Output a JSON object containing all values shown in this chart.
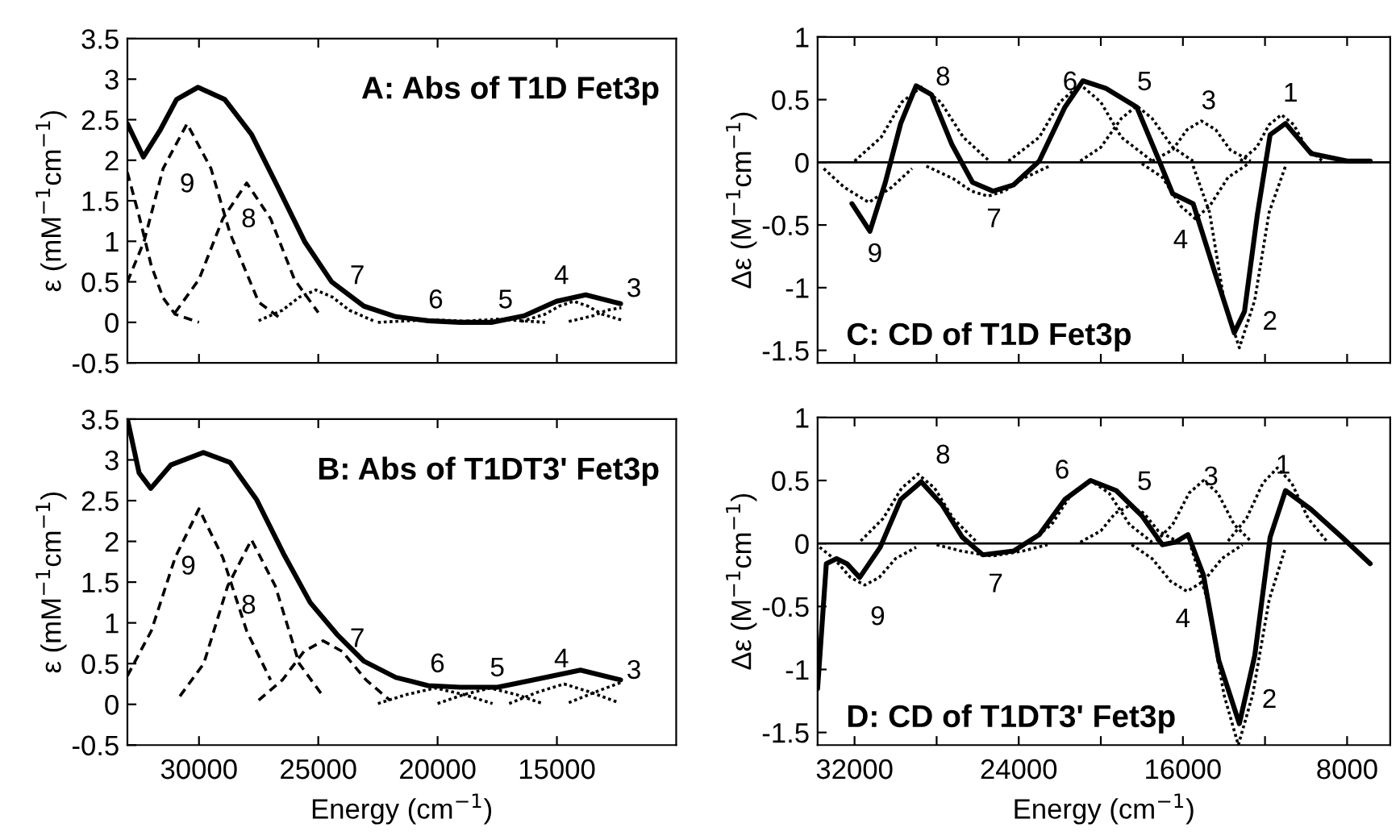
{
  "chart_data": [
    {
      "type": "line",
      "title": "A: Abs of T1D Fet3p",
      "ylabel": "ε (mM$^{−1}$cm$^{−1}$)",
      "xlim": [
        33000,
        10000
      ],
      "ylim": [
        -0.5,
        3.5
      ],
      "xticks": [
        {
          "value": 30000,
          "label": null
        },
        {
          "value": 25000,
          "label": null
        },
        {
          "value": 20000,
          "label": null
        },
        {
          "value": 15000,
          "label": null
        }
      ],
      "yticks": [
        3.5,
        3,
        2.5,
        2,
        1.5,
        1,
        0.5,
        0,
        -0.5
      ],
      "tick_labels": "y",
      "series": [
        {
          "color": "#000000",
          "line_style": "solid",
          "x": [
            33000,
            32330,
            31610,
            30940,
            30040,
            28920,
            27800,
            26680,
            25560,
            24440,
            23090,
            21750,
            20400,
            19060,
            17710,
            16370,
            15020,
            13790,
            12330
          ],
          "values": [
            2.45,
            2.04,
            2.38,
            2.75,
            2.9,
            2.75,
            2.32,
            1.66,
            0.99,
            0.5,
            0.2,
            0.07,
            0.02,
            0,
            0,
            0.08,
            0.26,
            0.34,
            0.23
          ]
        },
        {
          "color": "#000000",
          "line_style": "dashed",
          "x": [
            33000,
            32500,
            32000,
            31500,
            31000,
            30000
          ],
          "values": [
            1.85,
            1.3,
            0.7,
            0.3,
            0.1,
            0
          ]
        },
        {
          "color": "#000000",
          "line_style": "dashed",
          "x": [
            33000,
            32300,
            31500,
            30500,
            29500,
            28700,
            27500,
            26500
          ],
          "values": [
            0.5,
            1.0,
            1.9,
            2.45,
            1.9,
            1.1,
            0.25,
            0.03
          ]
        },
        {
          "color": "#000000",
          "line_style": "dashed",
          "x": [
            31000,
            30000,
            29000,
            28000,
            27000,
            26000,
            25000
          ],
          "values": [
            0.12,
            0.53,
            1.28,
            1.72,
            1.28,
            0.53,
            0.12
          ]
        },
        {
          "color": "#000000",
          "line_style": "dotted",
          "x": [
            27500,
            26500,
            25800,
            25100,
            24400,
            23700,
            22700
          ],
          "values": [
            0.02,
            0.15,
            0.31,
            0.4,
            0.31,
            0.15,
            0.02
          ]
        },
        {
          "color": "#000000",
          "line_style": "dotted",
          "x": [
            22500,
            21200,
            20200,
            19200,
            17900
          ],
          "values": [
            0,
            0.02,
            0.03,
            0.02,
            0
          ]
        },
        {
          "color": "#000000",
          "line_style": "dotted",
          "x": [
            19500,
            18500,
            17500,
            16500,
            15500
          ],
          "values": [
            0,
            0.02,
            0.04,
            0.02,
            0
          ]
        },
        {
          "color": "#000000",
          "line_style": "dotted",
          "x": [
            16500,
            15500,
            14900,
            14300,
            13700,
            13100,
            12300
          ],
          "values": [
            0.01,
            0.1,
            0.2,
            0.26,
            0.2,
            0.1,
            0.03
          ]
        },
        {
          "color": "#000000",
          "line_style": "dotted",
          "x": [
            14500,
            13500,
            12900,
            12300
          ],
          "values": [
            0.01,
            0.08,
            0.15,
            0.18
          ]
        }
      ],
      "annotations": [
        "9",
        "8",
        "7",
        "6",
        "5",
        "4",
        "3"
      ]
    },
    {
      "type": "line",
      "title": "C: CD of T1D Fet3p",
      "ylabel": "Δε (M$^{−1}$cm$^{−1}$)",
      "xlim": [
        33800,
        5900
      ],
      "ylim": [
        -1.6,
        1.0
      ],
      "xticks": [
        {
          "value": 32000,
          "label": null
        },
        {
          "value": 28000,
          "label": null
        },
        {
          "value": 24000,
          "label": null
        },
        {
          "value": 20000,
          "label": null
        },
        {
          "value": 16000,
          "label": null
        },
        {
          "value": 12000,
          "label": null
        },
        {
          "value": 8000,
          "label": null
        }
      ],
      "yticks": [
        1,
        0.5,
        0,
        -0.5,
        -1,
        -1.5
      ],
      "tick_labels": "y",
      "ref_lines": [
        {
          "axis": "y",
          "value": 0,
          "color": "#000000",
          "line_style": "solid"
        }
      ],
      "series": [
        {
          "color": "#000000",
          "line_style": "solid",
          "x": [
            32125,
            31250,
            30500,
            29750,
            29000,
            28250,
            27250,
            26250,
            25250,
            24250,
            23000,
            21750,
            20875,
            19750,
            18250,
            17250,
            16500,
            15500,
            14500,
            13500,
            13000,
            12375,
            11750,
            11000,
            9750,
            8000,
            6875
          ],
          "values": [
            -0.33,
            -0.55,
            -0.16,
            0.31,
            0.61,
            0.54,
            0.14,
            -0.16,
            -0.23,
            -0.18,
            0.01,
            0.44,
            0.65,
            0.59,
            0.44,
            0.05,
            -0.25,
            -0.33,
            -0.85,
            -1.36,
            -1.19,
            -0.42,
            0.22,
            0.31,
            0.07,
            0.01,
            0.01
          ]
        },
        {
          "color": "#000000",
          "line_style": "dotted",
          "x": [
            33500,
            32500,
            31300,
            30200,
            29200
          ],
          "values": [
            -0.05,
            -0.2,
            -0.32,
            -0.2,
            -0.05
          ]
        },
        {
          "color": "#000000",
          "line_style": "dotted",
          "x": [
            32000,
            30700,
            29700,
            28750,
            27800,
            26700,
            25500
          ],
          "values": [
            0.01,
            0.2,
            0.48,
            0.6,
            0.48,
            0.2,
            0.02
          ]
        },
        {
          "color": "#000000",
          "line_style": "dotted",
          "x": [
            28500,
            27200,
            26300,
            25500,
            24700,
            23800,
            22500
          ],
          "values": [
            -0.03,
            -0.13,
            -0.23,
            -0.27,
            -0.23,
            -0.13,
            -0.03
          ]
        },
        {
          "color": "#000000",
          "line_style": "dotted",
          "x": [
            24500,
            23000,
            22000,
            21000,
            20000,
            19000,
            17500
          ],
          "values": [
            0.01,
            0.2,
            0.48,
            0.62,
            0.48,
            0.2,
            0.01
          ]
        },
        {
          "color": "#000000",
          "line_style": "dotted",
          "x": [
            21000,
            20000,
            19000,
            18250,
            17500,
            16500,
            15500
          ],
          "values": [
            0.01,
            0.12,
            0.35,
            0.45,
            0.35,
            0.12,
            0.01
          ]
        },
        {
          "color": "#000000",
          "line_style": "dotted",
          "x": [
            18000,
            17000,
            16100,
            15400,
            14700,
            13800,
            12800
          ],
          "values": [
            -0.01,
            -0.12,
            -0.35,
            -0.45,
            -0.35,
            -0.12,
            -0.01
          ]
        },
        {
          "color": "#000000",
          "line_style": "dotted",
          "x": [
            17500,
            16500,
            15800,
            15100,
            14400,
            13700,
            12700
          ],
          "values": [
            0.01,
            0.1,
            0.26,
            0.33,
            0.26,
            0.1,
            0.01
          ]
        },
        {
          "color": "#000000",
          "line_style": "dotted",
          "x": [
            15500,
            14700,
            14000,
            13250,
            12500,
            11800,
            11000
          ],
          "values": [
            -0.03,
            -0.4,
            -1.1,
            -1.48,
            -1.1,
            -0.4,
            -0.03
          ]
        },
        {
          "color": "#000000",
          "line_style": "dotted",
          "x": [
            13200,
            12400,
            11800,
            11200,
            10600,
            10000,
            9200
          ],
          "values": [
            0.01,
            0.12,
            0.3,
            0.38,
            0.3,
            0.12,
            0.01
          ]
        }
      ],
      "annotations": [
        "8",
        "6",
        "5",
        "3",
        "1",
        "9",
        "7",
        "4",
        "2"
      ]
    },
    {
      "type": "line",
      "title": "B: Abs of T1DT3' Fet3p",
      "xlabel": "Energy (cm$^{−1}$)",
      "ylabel": "ε (mM$^{−1}$cm$^{−1}$)",
      "xlim": [
        33000,
        10000
      ],
      "ylim": [
        -0.5,
        3.5
      ],
      "xticks": [
        30000,
        25000,
        20000,
        15000
      ],
      "yticks": [
        3.5,
        3,
        2.5,
        2,
        1.5,
        1,
        0.5,
        0,
        -0.5
      ],
      "series": [
        {
          "color": "#000000",
          "line_style": "solid",
          "x": [
            33000,
            32510,
            32020,
            31170,
            29820,
            28700,
            27580,
            26460,
            25340,
            24220,
            23090,
            21750,
            20400,
            19060,
            17490,
            16820,
            15470,
            14010,
            12330
          ],
          "values": [
            3.5,
            2.84,
            2.65,
            2.94,
            3.09,
            2.97,
            2.51,
            1.85,
            1.25,
            0.86,
            0.53,
            0.33,
            0.23,
            0.21,
            0.21,
            0.25,
            0.33,
            0.42,
            0.3
          ]
        },
        {
          "color": "#000000",
          "line_style": "dashed",
          "x": [
            33000,
            32000,
            31000,
            30000,
            29000,
            28000,
            27000
          ],
          "values": [
            0.35,
            0.9,
            1.8,
            2.4,
            1.8,
            0.9,
            0.3
          ]
        },
        {
          "color": "#000000",
          "line_style": "dashed",
          "x": [
            30800,
            29800,
            28800,
            27800,
            26800,
            25800,
            24800
          ],
          "values": [
            0.1,
            0.5,
            1.45,
            2.02,
            1.45,
            0.5,
            0.1
          ]
        },
        {
          "color": "#000000",
          "line_style": "dashed",
          "x": [
            27500,
            26500,
            25600,
            24800,
            24000,
            23000,
            22000
          ],
          "values": [
            0.05,
            0.3,
            0.65,
            0.78,
            0.65,
            0.3,
            0.05
          ]
        },
        {
          "color": "#000000",
          "line_style": "dotted",
          "x": [
            22500,
            21300,
            20100,
            18900,
            17700
          ],
          "values": [
            0.01,
            0.12,
            0.2,
            0.12,
            0.01
          ]
        },
        {
          "color": "#000000",
          "line_style": "dotted",
          "x": [
            20000,
            18900,
            17800,
            16700,
            15600
          ],
          "values": [
            0.01,
            0.12,
            0.2,
            0.12,
            0.01
          ]
        },
        {
          "color": "#000000",
          "line_style": "dotted",
          "x": [
            17000,
            15800,
            14700,
            13600,
            12400
          ],
          "values": [
            0.01,
            0.15,
            0.25,
            0.15,
            0.02
          ]
        },
        {
          "color": "#000000",
          "line_style": "dotted",
          "x": [
            14500,
            13400,
            12300
          ],
          "values": [
            0.02,
            0.15,
            0.27
          ]
        }
      ],
      "annotations": [
        "9",
        "8",
        "7",
        "6",
        "5",
        "4",
        "3"
      ]
    },
    {
      "type": "line",
      "title": "D: CD of T1DT3' Fet3p",
      "xlabel": "Energy (cm$^{−1}$)",
      "ylabel": "Δε (M$^{−1}$cm$^{−1}$)",
      "xlim": [
        33800,
        5900
      ],
      "ylim": [
        -1.6,
        1.0
      ],
      "xticks": [
        32000,
        {
          "value": 28000,
          "label": null
        },
        24000,
        {
          "value": 20000,
          "label": null
        },
        16000,
        {
          "value": 12000,
          "label": null
        },
        8000
      ],
      "yticks": [
        1,
        0.5,
        0,
        -0.5,
        -1,
        -1.5
      ],
      "ref_lines": [
        {
          "axis": "y",
          "value": 0,
          "color": "#000000",
          "line_style": "solid"
        }
      ],
      "series": [
        {
          "color": "#000000",
          "line_style": "solid",
          "x": [
            33800,
            33375,
            32875,
            32375,
            31750,
            30750,
            29750,
            28750,
            27750,
            26750,
            25750,
            24250,
            23000,
            21750,
            20500,
            19250,
            18000,
            17000,
            16375,
            15750,
            15000,
            14250,
            13250,
            12500,
            11750,
            11000,
            9750,
            8250,
            6875
          ],
          "values": [
            -1.15,
            -0.16,
            -0.12,
            -0.16,
            -0.27,
            -0.03,
            0.35,
            0.49,
            0.31,
            0.05,
            -0.09,
            -0.06,
            0.07,
            0.35,
            0.5,
            0.42,
            0.22,
            -0.01,
            0.01,
            0.07,
            -0.25,
            -0.93,
            -1.43,
            -0.89,
            0.05,
            0.42,
            0.27,
            0.05,
            -0.16
          ]
        },
        {
          "color": "#000000",
          "line_style": "dotted",
          "x": [
            33700,
            33000,
            32200,
            31500,
            30800,
            30000,
            29000
          ],
          "values": [
            -0.03,
            -0.12,
            -0.27,
            -0.33,
            -0.27,
            -0.12,
            -0.03
          ]
        },
        {
          "color": "#000000",
          "line_style": "dotted",
          "x": [
            31700,
            30600,
            29700,
            28900,
            28100,
            27200,
            26100
          ],
          "values": [
            0.02,
            0.2,
            0.44,
            0.55,
            0.44,
            0.2,
            0.02
          ]
        },
        {
          "color": "#000000",
          "line_style": "dotted",
          "x": [
            28000,
            26800,
            25300,
            23800,
            22600
          ],
          "values": [
            -0.01,
            -0.06,
            -0.1,
            -0.06,
            -0.01
          ]
        },
        {
          "color": "#000000",
          "line_style": "dotted",
          "x": [
            23500,
            22400,
            21400,
            20500,
            19600,
            18600,
            17500
          ],
          "values": [
            0.01,
            0.15,
            0.4,
            0.5,
            0.4,
            0.15,
            0.01
          ]
        },
        {
          "color": "#000000",
          "line_style": "dotted",
          "x": [
            21000,
            20000,
            19300,
            18600,
            17900,
            17200,
            16200
          ],
          "values": [
            0.01,
            0.1,
            0.24,
            0.3,
            0.24,
            0.1,
            0.01
          ]
        },
        {
          "color": "#000000",
          "line_style": "dotted",
          "x": [
            18500,
            17500,
            16600,
            15800,
            15000,
            14100,
            13100
          ],
          "values": [
            -0.01,
            -0.12,
            -0.3,
            -0.38,
            -0.3,
            -0.12,
            -0.01
          ]
        },
        {
          "color": "#000000",
          "line_style": "dotted",
          "x": [
            17300,
            16500,
            15700,
            15000,
            14300,
            13500,
            12700
          ],
          "values": [
            0.02,
            0.15,
            0.4,
            0.5,
            0.4,
            0.15,
            0.02
          ]
        },
        {
          "color": "#000000",
          "line_style": "dotted",
          "x": [
            15600,
            14800,
            14000,
            13300,
            12600,
            11800,
            11000
          ],
          "values": [
            -0.03,
            -0.45,
            -1.2,
            -1.6,
            -1.2,
            -0.45,
            -0.03
          ]
        },
        {
          "color": "#000000",
          "line_style": "dotted",
          "x": [
            13800,
            12900,
            12100,
            11400,
            10700,
            9900,
            9000
          ],
          "values": [
            0.02,
            0.2,
            0.48,
            0.6,
            0.48,
            0.2,
            0.02
          ]
        }
      ],
      "annotations": [
        "8",
        "6",
        "5",
        "3",
        "1",
        "9",
        "7",
        "4",
        "2"
      ]
    }
  ]
}
